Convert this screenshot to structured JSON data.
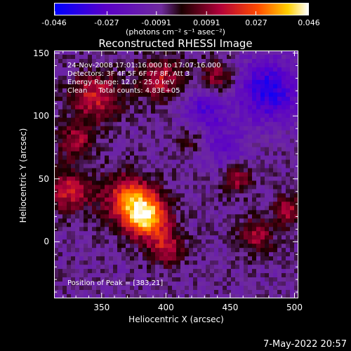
{
  "chart_data": {
    "type": "heatmap",
    "title": "Reconstructed RHESSI Image",
    "xlabel": "Heliocentric X (arcsec)",
    "ylabel": "Heliocentric Y (arcsec)",
    "xlim": [
      313,
      503
    ],
    "ylim": [
      -45,
      152
    ],
    "x_ticks": [
      350,
      400,
      450,
      500
    ],
    "y_ticks": [
      0,
      50,
      100,
      150
    ],
    "colorbar": {
      "range": [
        -0.046,
        0.046
      ],
      "tick_values": [
        -0.046,
        -0.027,
        -0.0091,
        0.0091,
        0.027,
        0.046
      ],
      "tick_labels": [
        "-0.046",
        "-0.027",
        "-0.0091",
        "0.0091",
        "0.027",
        "0.046"
      ],
      "unit": "(photons cm⁻² s⁻¹ asec⁻²)",
      "colors": [
        "#0000ff",
        "#5a00c8",
        "#6f2b9e",
        "#b0003a",
        "#ff4a00",
        "#ffd000",
        "#ffffff"
      ]
    },
    "annotations": {
      "line1": "24-Nov-2008 17:01:16.000 to 17:07:16.000",
      "line2": "Detectors: 3F 4F 5F 6F 7F 8F, Att 3",
      "line3": "Energy Range: 12.0 - 25.0 keV",
      "line4": "Clean     Total counts: 4.83E+05",
      "peak": "Position of Peak = [383,21]"
    },
    "peak_position": [
      383,
      21
    ],
    "sources": [
      {
        "x": 385,
        "y": 20,
        "amplitude": 0.046,
        "sigma": 12
      },
      {
        "x": 370,
        "y": 35,
        "amplitude": 0.03,
        "sigma": 14
      },
      {
        "x": 400,
        "y": -5,
        "amplitude": 0.022,
        "sigma": 10
      },
      {
        "x": 325,
        "y": 40,
        "amplitude": 0.025,
        "sigma": 12
      },
      {
        "x": 330,
        "y": 80,
        "amplitude": 0.02,
        "sigma": 10
      },
      {
        "x": 345,
        "y": 115,
        "amplitude": 0.026,
        "sigma": 14
      },
      {
        "x": 395,
        "y": 130,
        "amplitude": 0.024,
        "sigma": 12
      },
      {
        "x": 440,
        "y": 130,
        "amplitude": 0.02,
        "sigma": 10
      },
      {
        "x": 455,
        "y": 50,
        "amplitude": 0.02,
        "sigma": 8
      },
      {
        "x": 470,
        "y": 5,
        "amplitude": 0.02,
        "sigma": 10
      },
      {
        "x": 495,
        "y": 25,
        "amplitude": 0.022,
        "sigma": 8
      },
      {
        "x": 420,
        "y": 80,
        "amplitude": 0.012,
        "sigma": 8
      },
      {
        "x": 480,
        "y": 120,
        "amplitude": -0.03,
        "sigma": 18
      },
      {
        "x": 430,
        "y": 105,
        "amplitude": -0.02,
        "sigma": 12
      },
      {
        "x": 445,
        "y": 75,
        "amplitude": -0.015,
        "sigma": 12
      }
    ]
  },
  "footer": {
    "date": "7-May-2022 20:57"
  }
}
